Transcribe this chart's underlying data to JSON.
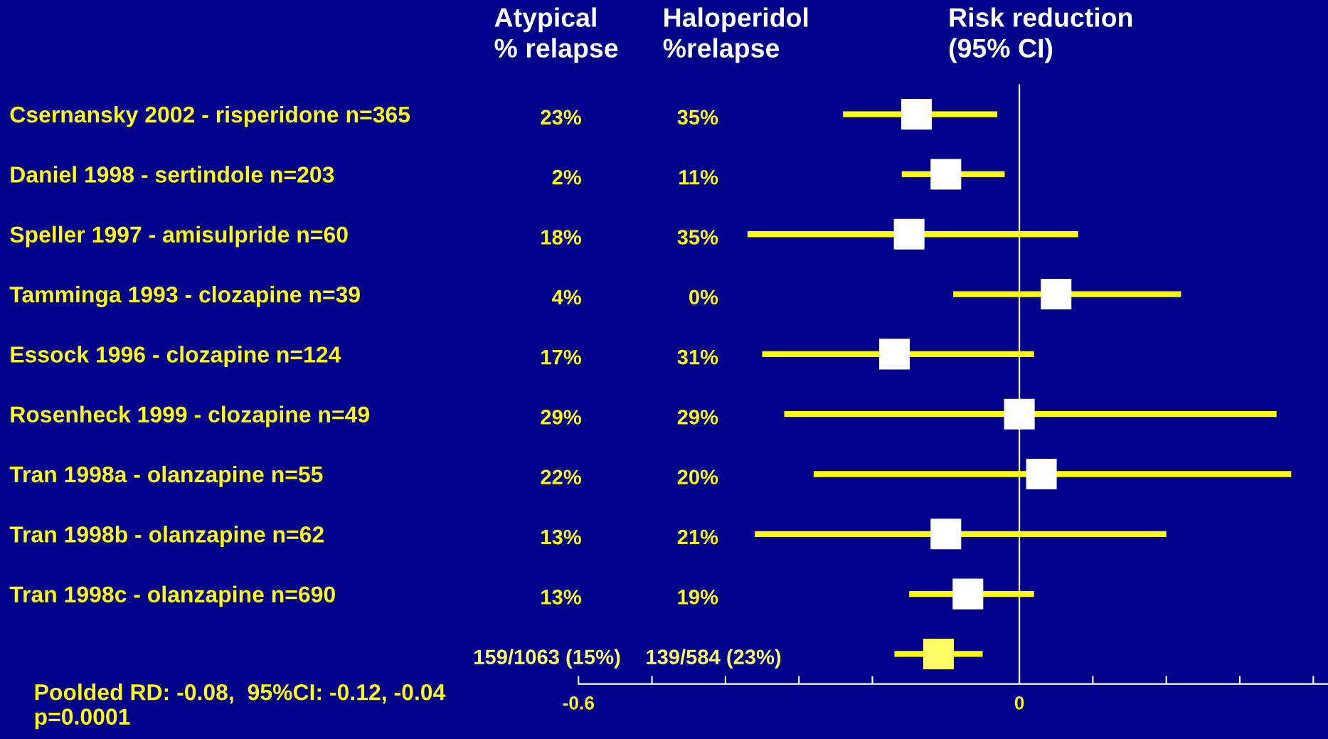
{
  "chart_data": {
    "type": "scatter",
    "orientation": "horizontal",
    "title": "Risk reduction\n(95% CI)",
    "categories": [
      "Csernansky 2002 - risperidone n=365",
      "Daniel 1998 - sertindole n=203",
      "Speller 1997 - amisulpride n=60",
      "Tamminga 1993 - clozapine n=39",
      "Essock 1996 - clozapine n=124",
      "Rosenheck 1999 - clozapine n=49",
      "Tran 1998a - olanzapine n=55",
      "Tran 1998b - olanzapine n=62",
      "Tran 1998c - olanzapine n=690",
      null
    ],
    "series": [
      {
        "color": "#ffff00",
        "colors": [
          "#ffffff",
          "#ffffff",
          "#ffffff",
          "#ffffff",
          "#ffffff",
          "#ffffff",
          "#ffffff",
          "#ffffff",
          "#ffffff",
          "#ffff66"
        ],
        "values": [
          -0.14,
          -0.1,
          -0.15,
          0.05,
          -0.17,
          0.0,
          0.03,
          -0.1,
          -0.07,
          -0.11
        ],
        "errors": [
          [
            -0.24,
            -0.03
          ],
          [
            -0.16,
            -0.02
          ],
          [
            -0.37,
            0.08
          ],
          [
            -0.09,
            0.22
          ],
          [
            -0.35,
            0.02
          ],
          [
            -0.32,
            0.35
          ],
          [
            -0.28,
            0.37
          ],
          [
            -0.36,
            0.2
          ],
          [
            -0.15,
            0.02
          ],
          [
            -0.17,
            -0.05
          ]
        ]
      }
    ],
    "xlim": [
      -0.6,
      0.42
    ],
    "xticks": [
      -0.6,
      {
        "value": -0.5,
        "label": null
      },
      {
        "value": -0.4,
        "label": null
      },
      {
        "value": -0.3,
        "label": null
      },
      {
        "value": -0.2,
        "label": null
      },
      0,
      {
        "value": 0.1,
        "label": null
      },
      {
        "value": 0.2,
        "label": null
      },
      {
        "value": 0.3,
        "label": null
      },
      {
        "value": 0.4,
        "label": null
      }
    ],
    "marker": "square",
    "grid": false,
    "legend": false,
    "ref_lines": [
      {
        "axis": "x",
        "value": 0,
        "color": "#ffffff"
      }
    ],
    "annotations": [
      "Atypical\n% relapse",
      "Haloperidol\n%relapse",
      "23%",
      "35%",
      "2%",
      "11%",
      "18%",
      "35%",
      "4%",
      "0%",
      "17%",
      "31%",
      "29%",
      "29%",
      "22%",
      "20%",
      "13%",
      "21%",
      "13%",
      "19%",
      "159/1063 (15%)",
      "139/584 (23%)",
      "Poolded RD: -0.08,  95%CI: -0.12, -0.04\np=0.0001"
    ]
  }
}
